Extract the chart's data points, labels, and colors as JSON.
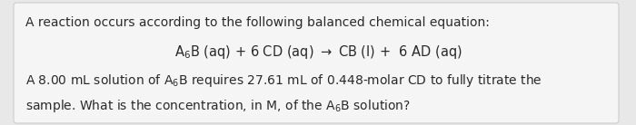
{
  "background_color": "#e8e8e8",
  "box_color": "#f5f5f5",
  "text_color": "#2a2a2a",
  "line1": "A reaction occurs according to the following balanced chemical equation:",
  "eq_text": "A$_6$B (aq) + 6 CD (aq) $\\rightarrow$ CB (l) +  6 AD (aq)",
  "line3_text": "A 8.00 mL solution of A$_6$B requires 27.61 mL of 0.448-molar CD to fully titrate the",
  "line4_text": "sample. What is the concentration, in M, of the A$_6$B solution?",
  "font_size_main": 10.0,
  "font_size_equation": 10.5,
  "figwidth": 7.0,
  "figheight": 1.38,
  "dpi": 100
}
